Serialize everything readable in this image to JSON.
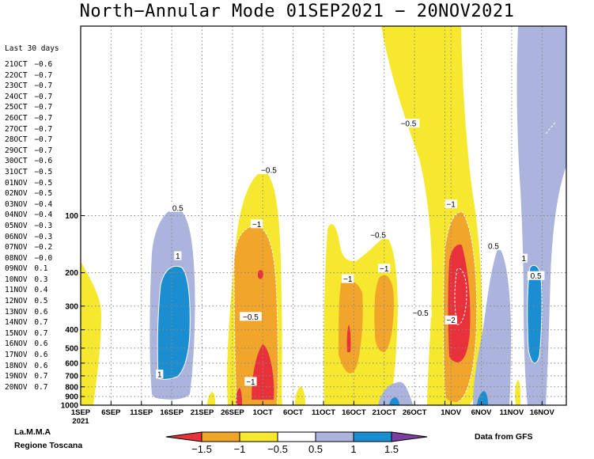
{
  "title": "North−Annular Mode 01SEP2021 − 20NOV2021",
  "side_panel": {
    "title": "Last 30 days",
    "entries": [
      {
        "date": "21OCT",
        "value": "−0.6"
      },
      {
        "date": "22OCT",
        "value": "−0.7"
      },
      {
        "date": "23OCT",
        "value": "−0.7"
      },
      {
        "date": "24OCT",
        "value": "−0.7"
      },
      {
        "date": "25OCT",
        "value": "−0.7"
      },
      {
        "date": "26OCT",
        "value": "−0.7"
      },
      {
        "date": "27OCT",
        "value": "−0.7"
      },
      {
        "date": "28OCT",
        "value": "−0.7"
      },
      {
        "date": "29OCT",
        "value": "−0.7"
      },
      {
        "date": "30OCT",
        "value": "−0.6"
      },
      {
        "date": "31OCT",
        "value": "−0.5"
      },
      {
        "date": "01NOV",
        "value": "−0.5"
      },
      {
        "date": "02NOV",
        "value": "−0.5"
      },
      {
        "date": "03NOV",
        "value": "−0.4"
      },
      {
        "date": "04NOV",
        "value": "−0.4"
      },
      {
        "date": "05NOV",
        "value": "−0.3"
      },
      {
        "date": "06NOV",
        "value": "−0.3"
      },
      {
        "date": "07NOV",
        "value": "−0.2"
      },
      {
        "date": "08NOV",
        "value": "−0.0"
      },
      {
        "date": "09NOV",
        "value": "0.1"
      },
      {
        "date": "10NOV",
        "value": "0.3"
      },
      {
        "date": "11NOV",
        "value": "0.4"
      },
      {
        "date": "12NOV",
        "value": "0.5"
      },
      {
        "date": "13NOV",
        "value": "0.6"
      },
      {
        "date": "14NOV",
        "value": "0.7"
      },
      {
        "date": "15NOV",
        "value": "0.7"
      },
      {
        "date": "16NOV",
        "value": "0.6"
      },
      {
        "date": "17NOV",
        "value": "0.6"
      },
      {
        "date": "18NOV",
        "value": "0.6"
      },
      {
        "date": "19NOV",
        "value": "0.7"
      },
      {
        "date": "20NOV",
        "value": "0.7"
      }
    ]
  },
  "credits": {
    "org1": "La.M.M.A",
    "org2": "Regione Toscana",
    "source": "Data from GFS"
  },
  "colors": {
    "lt_-1.5": "#e8313a",
    "-1.5_-1": "#f2a52b",
    "-1_-0.5": "#f5e82e",
    "-0.5_0.5": "#ffffff",
    "0.5_1": "#aab4dc",
    "1_1.5": "#1a8ed0",
    "gt_1.5": "#7a3fa0"
  },
  "chart_data": {
    "type": "heatmap",
    "title": "North−Annular Mode 01SEP2021 − 20NOV2021",
    "xlabel": "",
    "ylabel": "",
    "x_range": [
      "2021-09-01",
      "2021-11-20"
    ],
    "x_ticks": [
      {
        "date": "2021-09-01",
        "label": "1SEP",
        "sub": "2021"
      },
      {
        "date": "2021-09-06",
        "label": "6SEP"
      },
      {
        "date": "2021-09-11",
        "label": "11SEP"
      },
      {
        "date": "2021-09-16",
        "label": "16SEP"
      },
      {
        "date": "2021-09-21",
        "label": "21SEP"
      },
      {
        "date": "2021-09-26",
        "label": "26SEP"
      },
      {
        "date": "2021-10-01",
        "label": "1OCT"
      },
      {
        "date": "2021-10-06",
        "label": "6OCT"
      },
      {
        "date": "2021-10-11",
        "label": "11OCT"
      },
      {
        "date": "2021-10-16",
        "label": "16OCT"
      },
      {
        "date": "2021-10-21",
        "label": "21OCT"
      },
      {
        "date": "2021-10-26",
        "label": "26OCT"
      },
      {
        "date": "2021-10-31",
        "label": ""
      },
      {
        "date": "2021-11-01",
        "label": "1NOV"
      },
      {
        "date": "2021-11-06",
        "label": "6NOV"
      },
      {
        "date": "2021-11-11",
        "label": "11NOV"
      },
      {
        "date": "2021-11-16",
        "label": "16NOV"
      }
    ],
    "y_scale": "log",
    "y_range_hPa": [
      1000,
      10
    ],
    "y_ticks": [
      100,
      200,
      300,
      400,
      500,
      600,
      700,
      800,
      900,
      1000
    ],
    "grid": "dotted",
    "contour_levels": [
      -1.5,
      -1,
      -0.5,
      0.5,
      1,
      1.5
    ],
    "colorbar": {
      "labels": [
        "−1.5",
        "−1",
        "−0.5",
        "0.5",
        "1",
        "1.5"
      ]
    },
    "contour_labels": [
      {
        "text": "0.5",
        "date": "2021-09-17",
        "hPa": 92
      },
      {
        "text": "1",
        "date": "2021-09-17",
        "hPa": 165
      },
      {
        "text": "1",
        "date": "2021-09-14",
        "hPa": 695
      },
      {
        "text": "−0.5",
        "date": "2021-09-29",
        "hPa": 345
      },
      {
        "text": "−0.5",
        "date": "2021-10-02",
        "hPa": 58
      },
      {
        "text": "−1",
        "date": "2021-09-30",
        "hPa": 112
      },
      {
        "text": "−1",
        "date": "2021-09-29",
        "hPa": 760
      },
      {
        "text": "−1",
        "date": "2021-10-15",
        "hPa": 218
      },
      {
        "text": "−0.5",
        "date": "2021-10-20",
        "hPa": 128
      },
      {
        "text": "−1",
        "date": "2021-10-21",
        "hPa": 192
      },
      {
        "text": "−0.5",
        "date": "2021-10-25",
        "hPa": 33
      },
      {
        "text": "−0.5",
        "date": "2021-10-27",
        "hPa": 330
      },
      {
        "text": "−1",
        "date": "2021-11-01",
        "hPa": 88
      },
      {
        "text": "−2",
        "date": "2021-11-01",
        "hPa": 360
      },
      {
        "text": "0.5",
        "date": "2021-11-08",
        "hPa": 146
      },
      {
        "text": "1",
        "date": "2021-11-13",
        "hPa": 170
      },
      {
        "text": "0.5",
        "date": "2021-11-15",
        "hPa": 210
      }
    ]
  }
}
